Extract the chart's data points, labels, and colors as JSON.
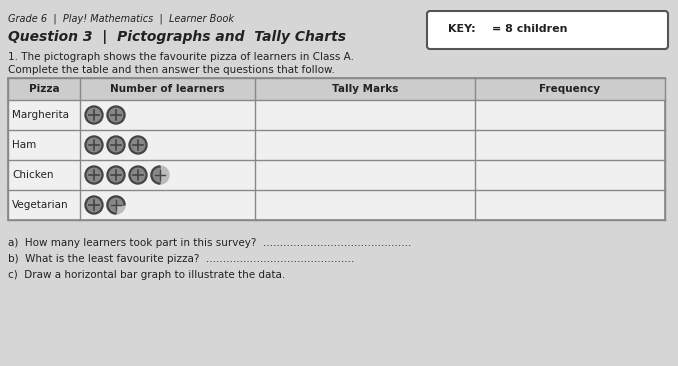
{
  "title_grade": "Grade 6  |  Play! Mathematics  |  Learner Book",
  "title_question": "Question 3  |  Pictographs and  Tally Charts",
  "instruction": "1. The pictograph shows the favourite pizza of learners in Class A.",
  "instruction2": "Complete the table and then answer the questions that follow.",
  "key_text": "= 8 children",
  "columns": [
    "Pizza",
    "Number of learners",
    "Tally Marks",
    "Frequency"
  ],
  "pizzas": [
    "Margherita",
    "Ham",
    "Chicken",
    "Vegetarian"
  ],
  "pizza_icons": [
    2,
    3,
    3.5,
    1.25
  ],
  "questions": [
    "a)  How many learners took part in this survey?  ............................................",
    "b)  What is the least favourite pizza?  ............................................",
    "c)  Draw a horizontal bar graph to illustrate the data."
  ],
  "bg_color": "#d6d6d6",
  "table_bg": "#e8e8e8",
  "header_bg": "#c8c8c8",
  "border_color": "#888888",
  "text_color": "#222222",
  "icon_dark": "#444444",
  "icon_light": "#888888"
}
